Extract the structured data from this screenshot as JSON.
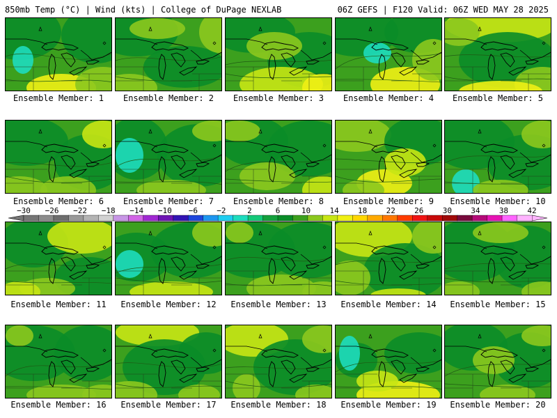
{
  "header": {
    "left_title": "850mb Temp (°C) | Wind (kts) | College of DuPage NEXLAB",
    "right_title": "06Z GEFS | F120 Valid: 06Z WED MAY 28 2025"
  },
  "members": [
    {
      "label": "Ensemble Member: 1"
    },
    {
      "label": "Ensemble Member: 2"
    },
    {
      "label": "Ensemble Member: 3"
    },
    {
      "label": "Ensemble Member: 4"
    },
    {
      "label": "Ensemble Member: 5"
    },
    {
      "label": "Ensemble Member: 6"
    },
    {
      "label": "Ensemble Member: 7"
    },
    {
      "label": "Ensemble Member: 8"
    },
    {
      "label": "Ensemble Member: 9"
    },
    {
      "label": "Ensemble Member: 10"
    },
    {
      "label": "Ensemble Member: 11"
    },
    {
      "label": "Ensemble Member: 12"
    },
    {
      "label": "Ensemble Member: 13"
    },
    {
      "label": "Ensemble Member: 14"
    },
    {
      "label": "Ensemble Member: 15"
    },
    {
      "label": "Ensemble Member: 16"
    },
    {
      "label": "Ensemble Member: 17"
    },
    {
      "label": "Ensemble Member: 18"
    },
    {
      "label": "Ensemble Member: 19"
    },
    {
      "label": "Ensemble Member: 20"
    }
  ],
  "colorbar": {
    "tick_labels": [
      "−30",
      "−26",
      "−22",
      "−18",
      "−14",
      "−10",
      "−6",
      "−2",
      "2",
      "6",
      "10",
      "14",
      "18",
      "22",
      "26",
      "30",
      "34",
      "38",
      "42"
    ],
    "colors": [
      "#767676",
      "#8c8c8c",
      "#6e6e6e",
      "#9a9a9a",
      "#b4b4b4",
      "#d2d2d2",
      "#c896e6",
      "#d264e6",
      "#a028d2",
      "#6e14b4",
      "#3214b4",
      "#1e46dc",
      "#1e96f0",
      "#1ecdf0",
      "#1edcbe",
      "#14c878",
      "#14a03c",
      "#0a8c28",
      "#3ca01e",
      "#8cc81e",
      "#c8e614",
      "#f0f014",
      "#ffd700",
      "#ffaa00",
      "#ff7800",
      "#ff3c00",
      "#f01414",
      "#c80a0a",
      "#a00a0a",
      "#780a3c",
      "#b40a78",
      "#e614b4",
      "#ff64ff",
      "#ffb4ff"
    ]
  },
  "palette": {
    "dark_green": "#0a8c28",
    "mid_green": "#3ca01e",
    "light_green": "#8cc81e",
    "yellow_green": "#c8e614",
    "yellow": "#f0f014",
    "teal": "#1edcbe"
  }
}
